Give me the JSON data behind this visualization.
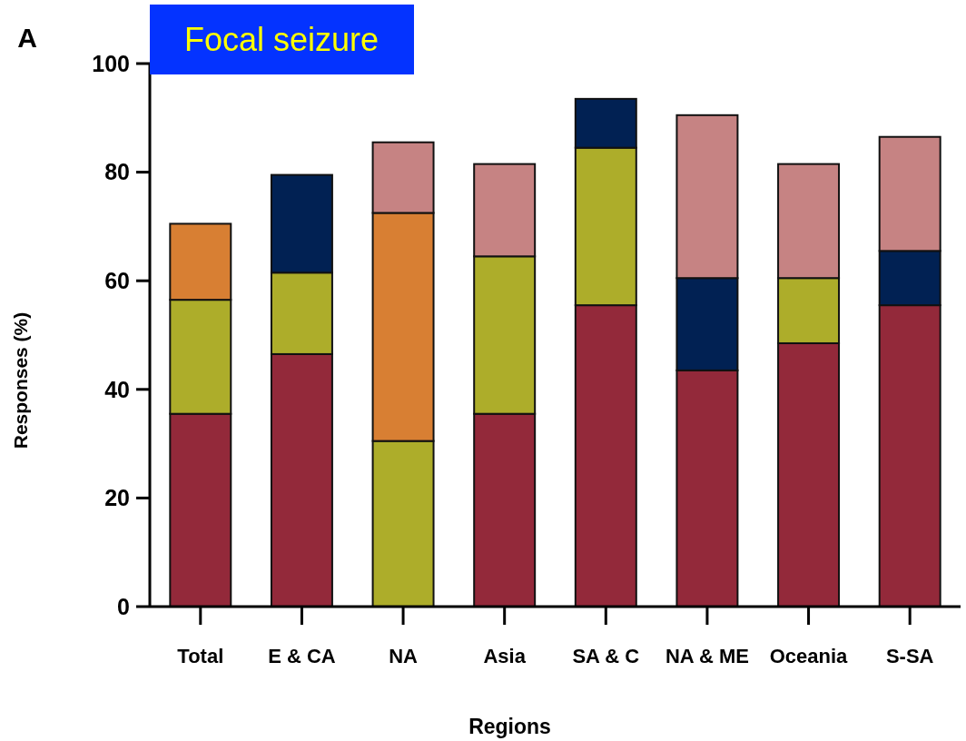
{
  "chart_data": {
    "type": "bar",
    "stacked": true,
    "title": "Focal seizure",
    "xlabel": "Regions",
    "ylabel": "Responses (%)",
    "annotations": [
      "A"
    ],
    "categories": [
      "Total",
      "E & CA",
      "NA",
      "Asia",
      "SA & C",
      "NA & ME",
      "Oceania",
      "S-SA"
    ],
    "series": [
      {
        "color": "#93293a",
        "values": [
          35.5,
          46.5,
          null,
          35.5,
          55.5,
          43.5,
          48.5,
          55.5
        ]
      },
      {
        "color": "#adad2a",
        "values": [
          21,
          15,
          30.5,
          29,
          29,
          null,
          12,
          null
        ]
      },
      {
        "color": "#d87f33",
        "values": [
          14,
          null,
          42,
          null,
          null,
          null,
          null,
          null
        ]
      },
      {
        "color": "#012153",
        "values": [
          null,
          18,
          null,
          null,
          9,
          17,
          null,
          10
        ]
      },
      {
        "color": "#c68383",
        "values": [
          null,
          null,
          13,
          17,
          null,
          30,
          21,
          21
        ]
      }
    ],
    "ylim": [
      0,
      100
    ],
    "yticks": [
      0,
      20,
      40,
      60,
      80,
      100
    ],
    "grid": false
  }
}
